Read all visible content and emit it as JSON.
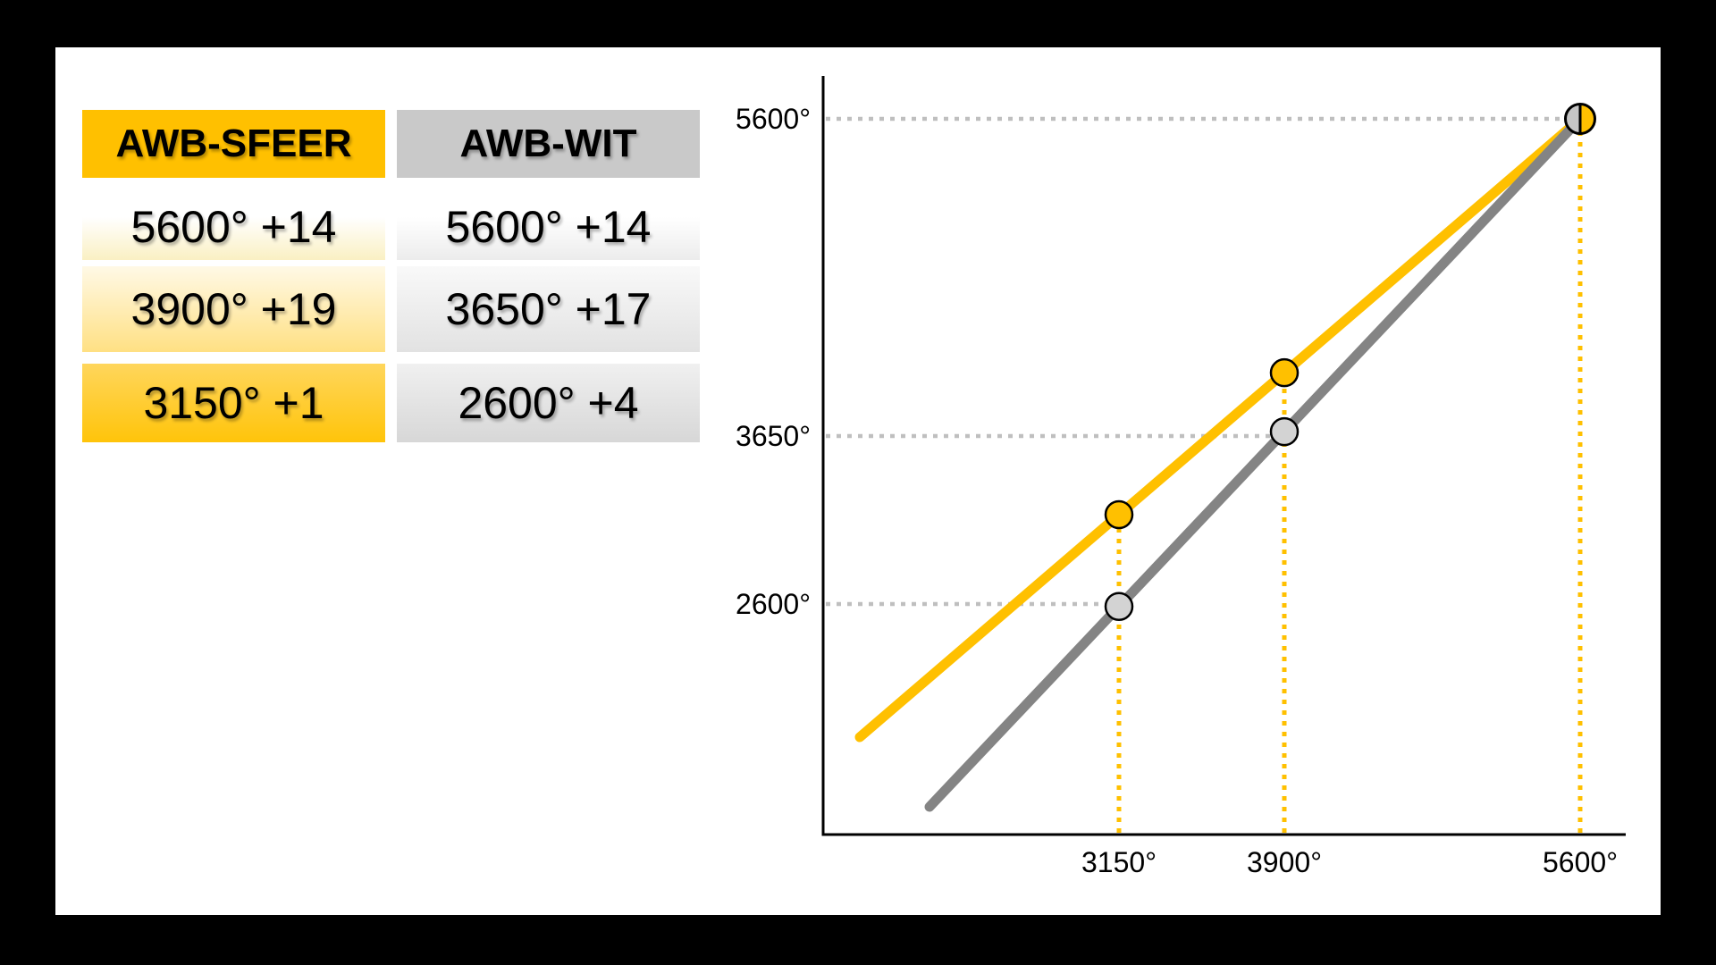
{
  "slide": {
    "background_color": "#000000",
    "panel_color": "#FFFFFF"
  },
  "table": {
    "columns": [
      {
        "header": "AWB-SFEER",
        "header_color": "#FFC000",
        "rows": [
          "5600° +14",
          "3900° +19",
          "3150° +1"
        ]
      },
      {
        "header": "AWB-WIT",
        "header_color": "#C9C9C9",
        "rows": [
          "5600° +14",
          "3650° +17",
          "2600° +4"
        ]
      }
    ]
  },
  "chart_data": {
    "type": "line",
    "title": "",
    "xlabel": "",
    "ylabel": "",
    "x_tick_labels": [
      "3150°",
      "3900°",
      "5600°"
    ],
    "y_tick_labels": [
      "5600°",
      "3650°",
      "2600°"
    ],
    "x_ticks": [
      3150,
      3900,
      5600
    ],
    "y_ticks": [
      5600,
      3650,
      2600
    ],
    "series": [
      {
        "name": "AWB-SFEER",
        "line_color": "#FFC000",
        "marker_fill": "#FFC000",
        "points": [
          {
            "x": 3150,
            "y": 3150
          },
          {
            "x": 3900,
            "y": 3900
          },
          {
            "x": 5600,
            "y": 5600
          }
        ]
      },
      {
        "name": "AWB-WIT",
        "line_color": "#848484",
        "marker_fill": "#D3D3D3",
        "points": [
          {
            "x": 3150,
            "y": 2600
          },
          {
            "x": 3900,
            "y": 3650
          },
          {
            "x": 5600,
            "y": 5600
          }
        ]
      }
    ],
    "shared_end_point": {
      "x": 5600,
      "y": 5600,
      "marker": "half-gray-half-yellow"
    },
    "guides": {
      "horizontal_dotted_at_y": [
        5600,
        3650,
        2600
      ],
      "horizontal_dotted_color": "#BFBFBF",
      "vertical_dotted_at_x": [
        3150,
        3900,
        5600
      ],
      "vertical_dotted_color": "#FFC000",
      "style": "dotted"
    },
    "axes": {
      "color": "#000000",
      "grid": "off",
      "legend": "none"
    }
  }
}
